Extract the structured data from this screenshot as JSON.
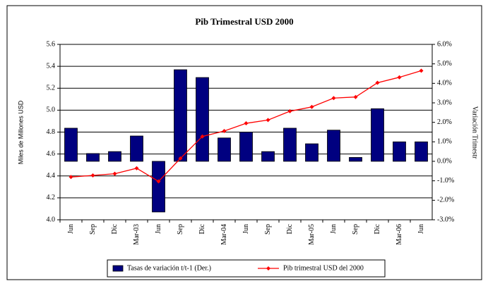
{
  "chart_data": {
    "type": "bar-line",
    "title": "Pib Trimestral USD 2000",
    "ylabel": "Miles de Millones USD",
    "y2label": "Variación Trimestr",
    "categories": [
      "Jun",
      "Sep",
      "Dic",
      "Mar-03",
      "Jun",
      "Sep",
      "Dic",
      "Mar-04",
      "Jun",
      "Sep",
      "Dic",
      "Mar-05",
      "Jun",
      "Sep",
      "Dic",
      "Mar-06",
      "Jun"
    ],
    "series": [
      {
        "name": "Tasas de variación t/t-1 (Der.)",
        "type": "bar",
        "axis": "y2",
        "color": "#000080",
        "values": [
          1.7,
          0.4,
          0.5,
          1.3,
          -2.6,
          4.7,
          4.3,
          1.2,
          1.5,
          0.5,
          1.7,
          0.9,
          1.6,
          0.2,
          2.7,
          1.0,
          1.0
        ]
      },
      {
        "name": "Pib trimestral USD del 2000",
        "type": "line",
        "axis": "y",
        "color": "#ff0000",
        "values": [
          4.39,
          4.405,
          4.42,
          4.47,
          4.35,
          4.56,
          4.76,
          4.81,
          4.88,
          4.91,
          4.99,
          5.03,
          5.11,
          5.12,
          5.25,
          5.3,
          5.36
        ]
      }
    ],
    "ylim": [
      4.0,
      5.6
    ],
    "yticks": [
      {
        "value": 4.0,
        "label": "4.0"
      },
      4.2,
      4.4,
      4.6,
      4.8,
      {
        "value": 5.0,
        "label": "5.0"
      },
      5.2,
      5.4,
      5.6
    ],
    "y2lim": [
      -3,
      6
    ],
    "y2ticks": [
      {
        "value": -3,
        "label": "-3.0%"
      },
      {
        "value": -2,
        "label": "-2.0%"
      },
      {
        "value": -1,
        "label": "-1.0%"
      },
      {
        "value": 0,
        "label": "0.0%"
      },
      {
        "value": 1,
        "label": "1.0%"
      },
      {
        "value": 2,
        "label": "2.0%"
      },
      {
        "value": 3,
        "label": "3.0%"
      },
      {
        "value": 4,
        "label": "4.0%"
      },
      {
        "value": 5,
        "label": "5.0%"
      },
      {
        "value": 6,
        "label": "6.0%"
      }
    ],
    "grid": true,
    "legend": "bottom"
  }
}
